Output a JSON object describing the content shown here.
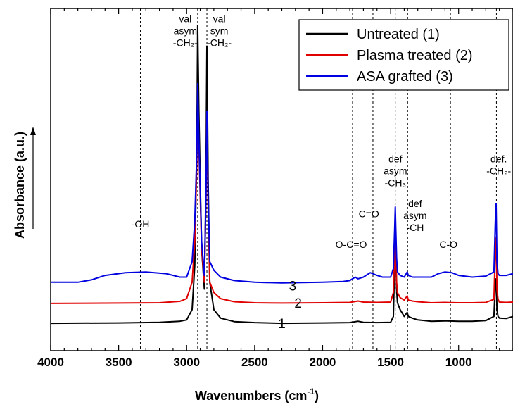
{
  "chart_data": {
    "type": "line",
    "xlabel_main": "Wavenumbers (cm",
    "xlabel_sup": "-1",
    "xlabel_close": ")",
    "ylabel": "Absorbance (a.u.)",
    "xlim": [
      4000,
      600
    ],
    "ylim": [
      0,
      1
    ],
    "x_reversed": true,
    "grid": false,
    "legend_position": "top-right",
    "xticks": [
      4000,
      3500,
      3000,
      2500,
      2000,
      1500,
      1000
    ],
    "series": [
      {
        "name": "Untreated (1)",
        "color": "#000000",
        "curve_label": "1",
        "curve_label_x": 2300,
        "curve_label_y": 0.08,
        "points": [
          [
            4000,
            0.08
          ],
          [
            3500,
            0.081
          ],
          [
            3200,
            0.083
          ],
          [
            3050,
            0.086
          ],
          [
            3000,
            0.09
          ],
          [
            2960,
            0.12
          ],
          [
            2940,
            0.25
          ],
          [
            2925,
            0.6
          ],
          [
            2919,
            0.95
          ],
          [
            2910,
            0.7
          ],
          [
            2890,
            0.3
          ],
          [
            2870,
            0.18
          ],
          [
            2858,
            0.5
          ],
          [
            2851,
            0.89
          ],
          [
            2842,
            0.5
          ],
          [
            2830,
            0.2
          ],
          [
            2800,
            0.12
          ],
          [
            2750,
            0.095
          ],
          [
            2650,
            0.085
          ],
          [
            2500,
            0.082
          ],
          [
            2300,
            0.08
          ],
          [
            2000,
            0.081
          ],
          [
            1800,
            0.082
          ],
          [
            1740,
            0.086
          ],
          [
            1700,
            0.083
          ],
          [
            1600,
            0.082
          ],
          [
            1500,
            0.083
          ],
          [
            1480,
            0.1
          ],
          [
            1470,
            0.26
          ],
          [
            1466,
            0.33
          ],
          [
            1462,
            0.28
          ],
          [
            1456,
            0.18
          ],
          [
            1450,
            0.14
          ],
          [
            1430,
            0.12
          ],
          [
            1400,
            0.1
          ],
          [
            1378,
            0.112
          ],
          [
            1370,
            0.1
          ],
          [
            1340,
            0.095
          ],
          [
            1300,
            0.09
          ],
          [
            1200,
            0.086
          ],
          [
            1100,
            0.087
          ],
          [
            1000,
            0.086
          ],
          [
            900,
            0.086
          ],
          [
            800,
            0.088
          ],
          [
            740,
            0.1
          ],
          [
            730,
            0.2
          ],
          [
            724,
            0.21
          ],
          [
            718,
            0.12
          ],
          [
            710,
            0.1
          ],
          [
            700,
            0.095
          ],
          [
            650,
            0.094
          ],
          [
            600,
            0.1
          ]
        ]
      },
      {
        "name": "Plasma treated (2)",
        "color": "#e00000",
        "curve_label": "2",
        "curve_label_x": 2180,
        "curve_label_y": 0.14,
        "points": [
          [
            4000,
            0.138
          ],
          [
            3500,
            0.139
          ],
          [
            3200,
            0.14
          ],
          [
            3050,
            0.144
          ],
          [
            3000,
            0.152
          ],
          [
            2960,
            0.2
          ],
          [
            2940,
            0.32
          ],
          [
            2925,
            0.55
          ],
          [
            2919,
            0.74
          ],
          [
            2910,
            0.6
          ],
          [
            2890,
            0.3
          ],
          [
            2870,
            0.2
          ],
          [
            2858,
            0.45
          ],
          [
            2851,
            0.68
          ],
          [
            2842,
            0.42
          ],
          [
            2830,
            0.2
          ],
          [
            2800,
            0.17
          ],
          [
            2750,
            0.152
          ],
          [
            2650,
            0.143
          ],
          [
            2500,
            0.14
          ],
          [
            2300,
            0.139
          ],
          [
            2000,
            0.14
          ],
          [
            1800,
            0.141
          ],
          [
            1740,
            0.145
          ],
          [
            1700,
            0.142
          ],
          [
            1600,
            0.141
          ],
          [
            1500,
            0.142
          ],
          [
            1480,
            0.17
          ],
          [
            1470,
            0.3
          ],
          [
            1466,
            0.37
          ],
          [
            1462,
            0.3
          ],
          [
            1456,
            0.2
          ],
          [
            1450,
            0.17
          ],
          [
            1430,
            0.155
          ],
          [
            1400,
            0.148
          ],
          [
            1378,
            0.16
          ],
          [
            1370,
            0.148
          ],
          [
            1340,
            0.145
          ],
          [
            1300,
            0.143
          ],
          [
            1200,
            0.14
          ],
          [
            1100,
            0.141
          ],
          [
            1000,
            0.14
          ],
          [
            900,
            0.14
          ],
          [
            800,
            0.141
          ],
          [
            740,
            0.15
          ],
          [
            730,
            0.3
          ],
          [
            724,
            0.33
          ],
          [
            718,
            0.18
          ],
          [
            710,
            0.15
          ],
          [
            700,
            0.142
          ],
          [
            650,
            0.141
          ],
          [
            600,
            0.142
          ]
        ]
      },
      {
        "name": "ASA grafted (3)",
        "color": "#0000e0",
        "curve_label": "3",
        "curve_label_x": 2220,
        "curve_label_y": 0.19,
        "points": [
          [
            4000,
            0.2
          ],
          [
            3800,
            0.2
          ],
          [
            3700,
            0.207
          ],
          [
            3600,
            0.22
          ],
          [
            3450,
            0.228
          ],
          [
            3300,
            0.23
          ],
          [
            3150,
            0.225
          ],
          [
            3050,
            0.215
          ],
          [
            3000,
            0.215
          ],
          [
            2960,
            0.26
          ],
          [
            2940,
            0.38
          ],
          [
            2925,
            0.58
          ],
          [
            2919,
            0.78
          ],
          [
            2910,
            0.62
          ],
          [
            2890,
            0.32
          ],
          [
            2870,
            0.22
          ],
          [
            2858,
            0.45
          ],
          [
            2851,
            0.7
          ],
          [
            2842,
            0.45
          ],
          [
            2830,
            0.26
          ],
          [
            2800,
            0.235
          ],
          [
            2750,
            0.215
          ],
          [
            2650,
            0.205
          ],
          [
            2500,
            0.2
          ],
          [
            2300,
            0.198
          ],
          [
            2000,
            0.2
          ],
          [
            1850,
            0.202
          ],
          [
            1800,
            0.205
          ],
          [
            1760,
            0.215
          ],
          [
            1740,
            0.21
          ],
          [
            1700,
            0.215
          ],
          [
            1650,
            0.228
          ],
          [
            1600,
            0.22
          ],
          [
            1560,
            0.215
          ],
          [
            1500,
            0.215
          ],
          [
            1480,
            0.24
          ],
          [
            1470,
            0.36
          ],
          [
            1466,
            0.42
          ],
          [
            1462,
            0.36
          ],
          [
            1456,
            0.27
          ],
          [
            1450,
            0.23
          ],
          [
            1430,
            0.22
          ],
          [
            1400,
            0.215
          ],
          [
            1378,
            0.23
          ],
          [
            1370,
            0.22
          ],
          [
            1340,
            0.215
          ],
          [
            1300,
            0.215
          ],
          [
            1200,
            0.215
          ],
          [
            1150,
            0.225
          ],
          [
            1100,
            0.23
          ],
          [
            1050,
            0.228
          ],
          [
            1000,
            0.22
          ],
          [
            900,
            0.215
          ],
          [
            800,
            0.218
          ],
          [
            740,
            0.23
          ],
          [
            730,
            0.38
          ],
          [
            724,
            0.43
          ],
          [
            718,
            0.26
          ],
          [
            710,
            0.225
          ],
          [
            700,
            0.22
          ],
          [
            650,
            0.22
          ],
          [
            600,
            0.225
          ]
        ]
      }
    ],
    "vlines": [
      3340,
      2919,
      2851,
      1780,
      1630,
      1466,
      1375,
      1060,
      722
    ],
    "annotations": [
      {
        "lines": [
          "-OH"
        ],
        "x": 3340,
        "y": 0.36
      },
      {
        "lines": [
          "val",
          "asym",
          "-CH₂-"
        ],
        "x": 3010,
        "y": 0.96
      },
      {
        "lines": [
          "val",
          "sym",
          "-CH₂-"
        ],
        "x": 2760,
        "y": 0.96
      },
      {
        "lines": [
          "O-C=O"
        ],
        "x": 1790,
        "y": 0.3
      },
      {
        "lines": [
          "C=O"
        ],
        "x": 1660,
        "y": 0.39
      },
      {
        "lines": [
          "def",
          "asym",
          "-CH₃"
        ],
        "x": 1465,
        "y": 0.55
      },
      {
        "lines": [
          "def",
          "asym",
          "-CH"
        ],
        "x": 1320,
        "y": 0.42
      },
      {
        "lines": [
          "C-O"
        ],
        "x": 1075,
        "y": 0.3
      },
      {
        "lines": [
          "def.",
          "-CH₂-"
        ],
        "x": 705,
        "y": 0.55
      }
    ]
  }
}
